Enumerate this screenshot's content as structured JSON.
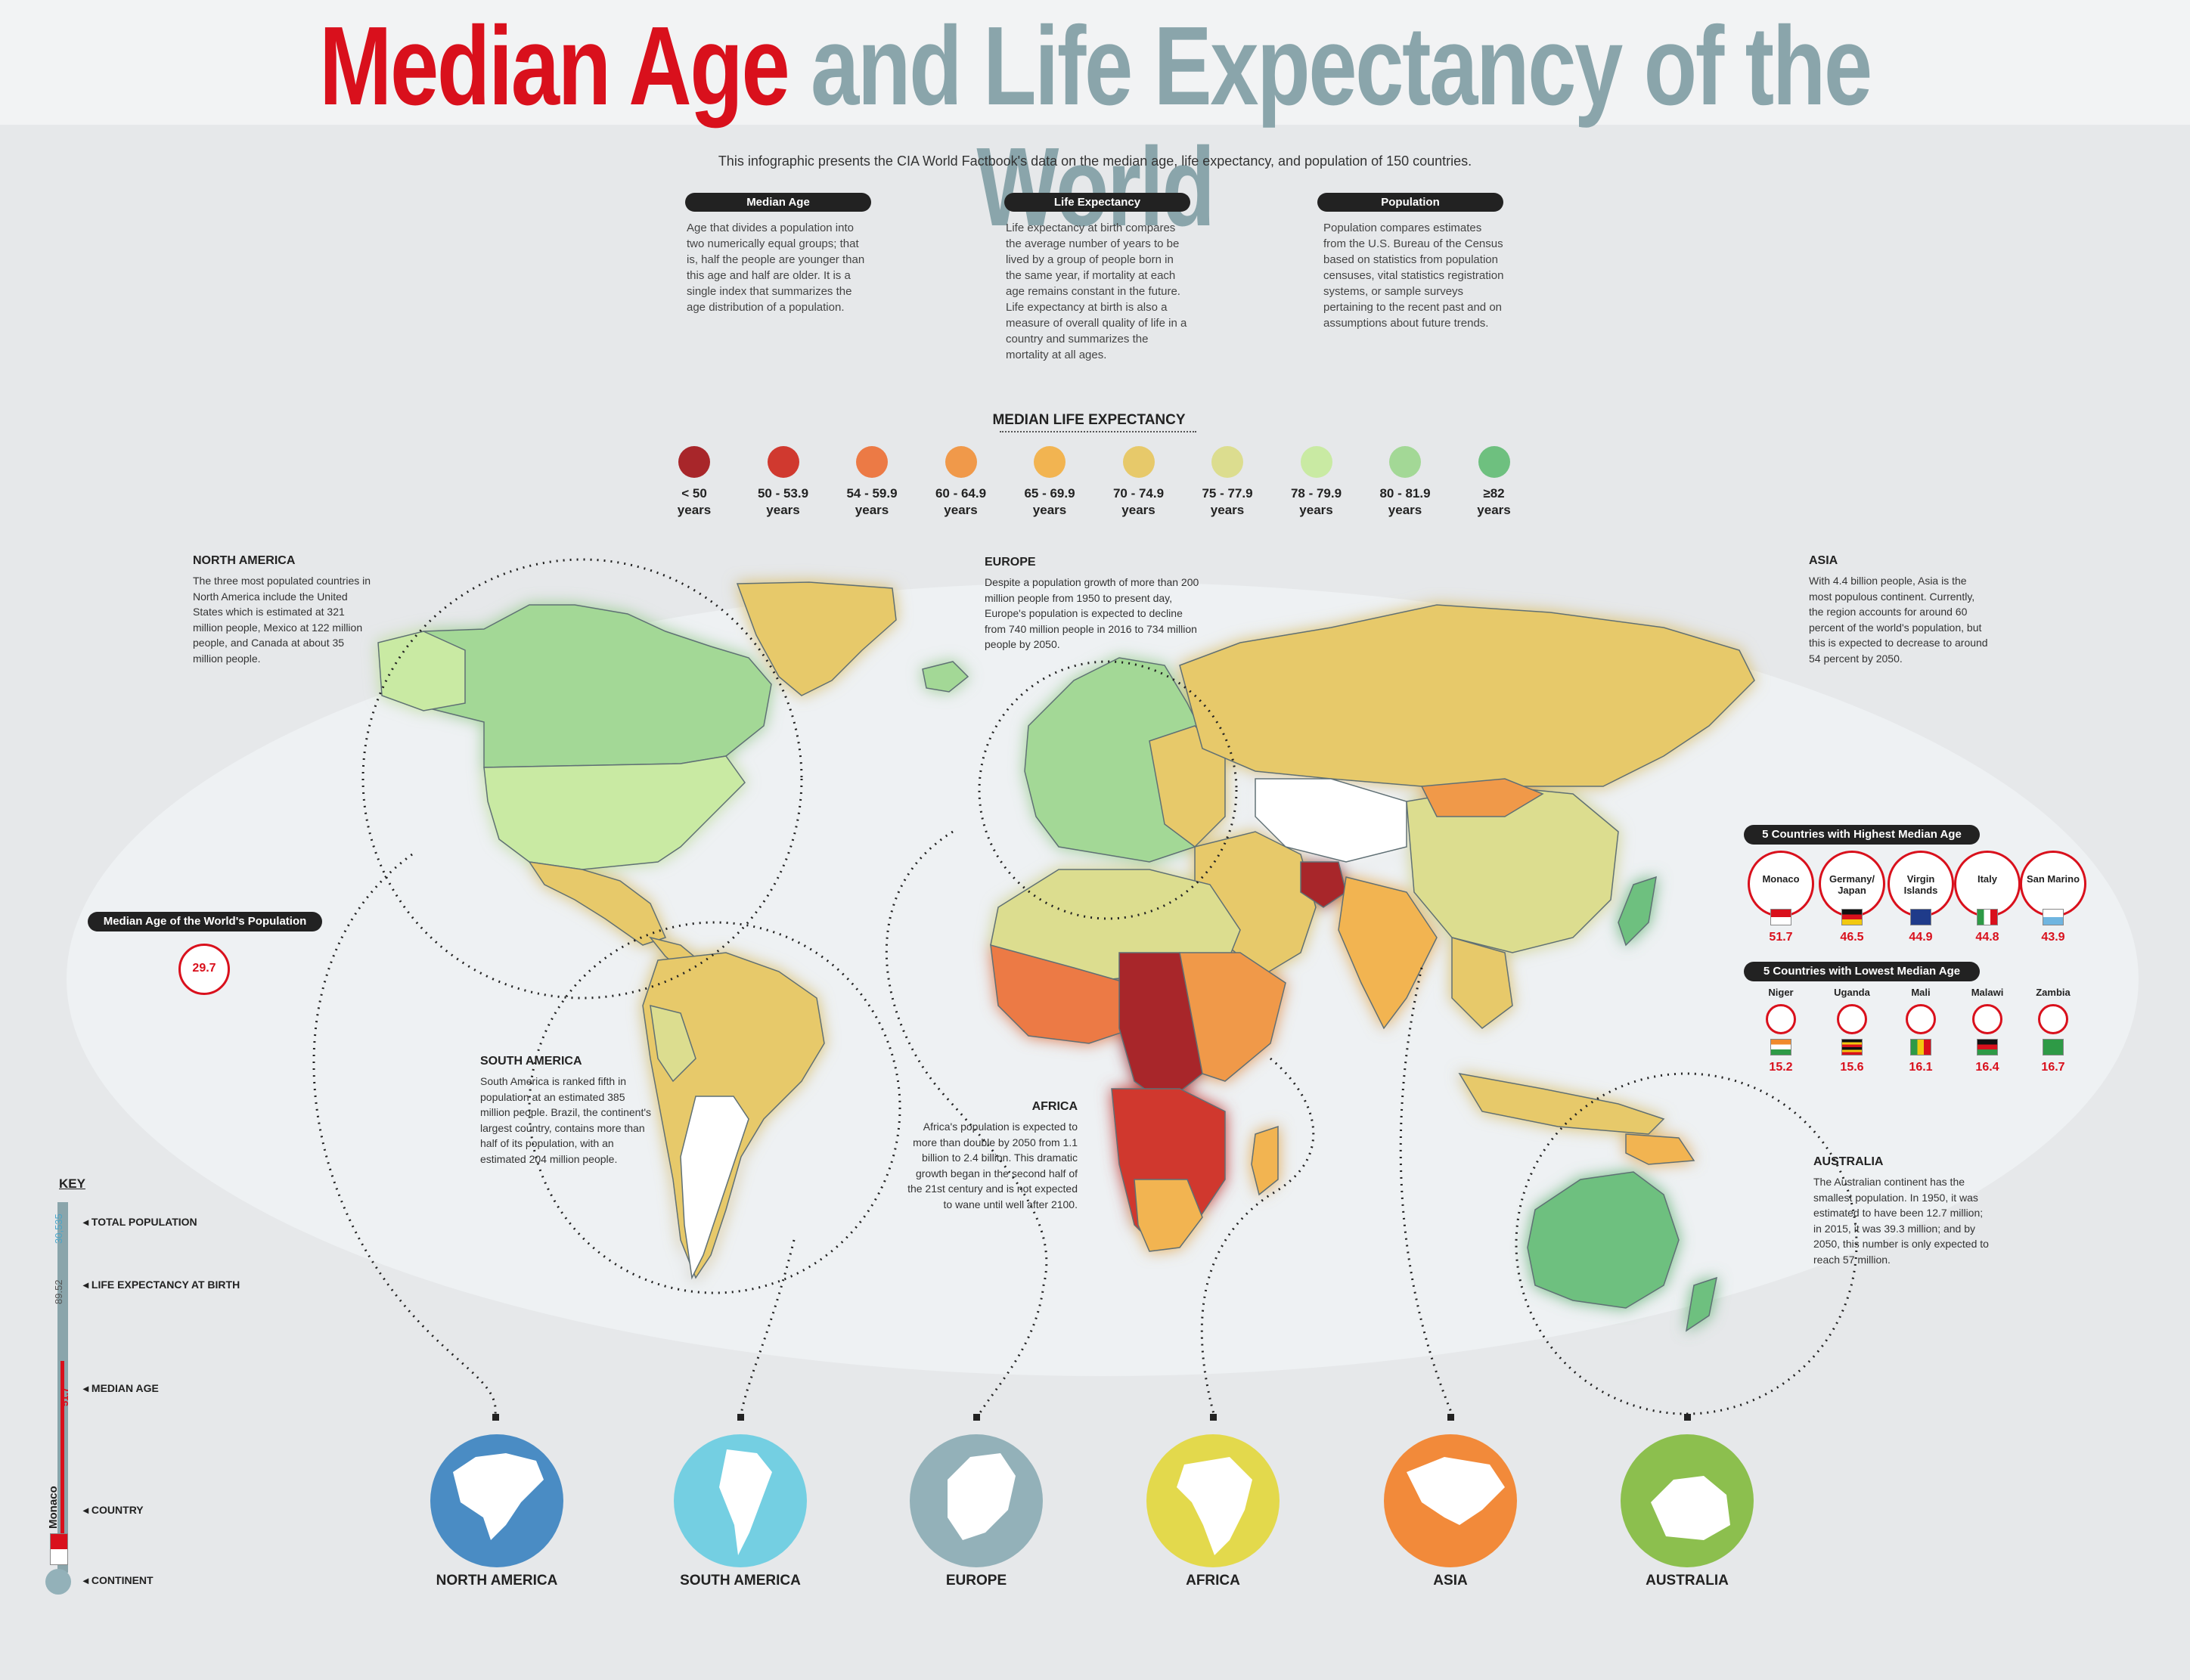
{
  "title": {
    "part1": "Median Age",
    "part2": "and Life Expectancy of the World"
  },
  "intro": "This infographic presents the CIA World Factbook's data on the median age, life expectancy, and population of 150 countries.",
  "definitions": [
    {
      "label": "Median Age",
      "text": "Age that divides a population into two numerically equal groups; that is, half the people are younger than this age and half are older. It is a single index that summarizes the age distribution of a population."
    },
    {
      "label": "Life Expectancy",
      "text": "Life expectancy at birth compares the average number of years to be lived by a group of people born in the same year, if mortality at each age remains constant in the future. Life expectancy at birth is also a measure of overall quality of life in a country and summarizes the mortality at all ages."
    },
    {
      "label": "Population",
      "text": "Population compares estimates from the U.S. Bureau of the Census based on statistics from population censuses, vital statistics registration systems, or sample surveys pertaining to the recent past and on assumptions about future trends."
    }
  ],
  "legend": {
    "title": "MEDIAN LIFE EXPECTANCY",
    "unit": "years",
    "items": [
      {
        "range": "< 50",
        "color": "#a8262a"
      },
      {
        "range": "50 - 53.9",
        "color": "#d0392f"
      },
      {
        "range": "54 - 59.9",
        "color": "#ec7a45"
      },
      {
        "range": "60 - 64.9",
        "color": "#f0994a"
      },
      {
        "range": "65 - 69.9",
        "color": "#f2b451"
      },
      {
        "range": "70 - 74.9",
        "color": "#e7c96a"
      },
      {
        "range": "75 - 77.9",
        "color": "#dcdd8f"
      },
      {
        "range": "78 - 79.9",
        "color": "#c9eaa3"
      },
      {
        "range": "80 - 81.9",
        "color": "#a3d896"
      },
      {
        "range": "≥82",
        "color": "#6ec07f"
      }
    ]
  },
  "regions": {
    "north_america": {
      "title": "NORTH AMERICA",
      "text": "The three most populated countries in North America include the United States which is estimated at 321 million people, Mexico at 122 million people, and Canada at about 35 million people."
    },
    "europe": {
      "title": "EUROPE",
      "text": "Despite a population growth of more than 200 million people from 1950 to present day, Europe's population is expected to decline from 740 million people in 2016 to 734 million people by 2050."
    },
    "asia": {
      "title": "ASIA",
      "text": "With 4.4 billion people, Asia is the most populous continent. Currently, the region accounts for around 60 percent of the world's population, but this is expected to decrease to around 54 percent by 2050."
    },
    "south_america": {
      "title": "SOUTH AMERICA",
      "text": "South America is ranked fifth in population at an estimated 385 million people. Brazil, the continent's largest country, contains more than half of its population, with an estimated 204 million people."
    },
    "africa": {
      "title": "AFRICA",
      "text": "Africa's population is expected to more than double by 2050 from 1.1 billion to 2.4 billion. This dramatic growth began in the second half of the 21st century and is not expected to wane until well after 2100."
    },
    "australia": {
      "title": "AUSTRALIA",
      "text": "The Australian continent has the smallest population. In 1950, it was estimated to have been 12.7 million; in 2015, it was 39.3 million; and by 2050, this number is only expected to reach 57 million."
    }
  },
  "world_median": {
    "label": "Median Age of the World's Population",
    "value": "29.7"
  },
  "highest": {
    "title": "5 Countries with Highest Median Age",
    "items": [
      {
        "name": "Monaco",
        "value": "51.7"
      },
      {
        "name": "Germany/ Japan",
        "value": "46.5"
      },
      {
        "name": "Virgin Islands",
        "value": "44.9"
      },
      {
        "name": "Italy",
        "value": "44.8"
      },
      {
        "name": "San Marino",
        "value": "43.9"
      }
    ]
  },
  "lowest": {
    "title": "5 Countries with Lowest Median Age",
    "items": [
      {
        "name": "Niger",
        "value": "15.2"
      },
      {
        "name": "Uganda",
        "value": "15.6"
      },
      {
        "name": "Mali",
        "value": "16.1"
      },
      {
        "name": "Malawi",
        "value": "16.4"
      },
      {
        "name": "Zambia",
        "value": "16.7"
      }
    ]
  },
  "continents": [
    {
      "label": "NORTH AMERICA",
      "color": "#4a8cc4"
    },
    {
      "label": "SOUTH AMERICA",
      "color": "#74cfe2"
    },
    {
      "label": "EUROPE",
      "color": "#93b1b9"
    },
    {
      "label": "AFRICA",
      "color": "#e3d94c"
    },
    {
      "label": "ASIA",
      "color": "#f28a3a"
    },
    {
      "label": "AUSTRALIA",
      "color": "#8cbf4e"
    }
  ],
  "key": {
    "title": "KEY",
    "total_population": "TOTAL POPULATION",
    "life_expectancy": "LIFE EXPECTANCY AT BIRTH",
    "median_age": "MEDIAN AGE",
    "country": "COUNTRY",
    "continent": "CONTINENT",
    "sample_population": "30,535",
    "sample_life": "89.52",
    "sample_median": "51.7",
    "sample_country": "Monaco"
  }
}
